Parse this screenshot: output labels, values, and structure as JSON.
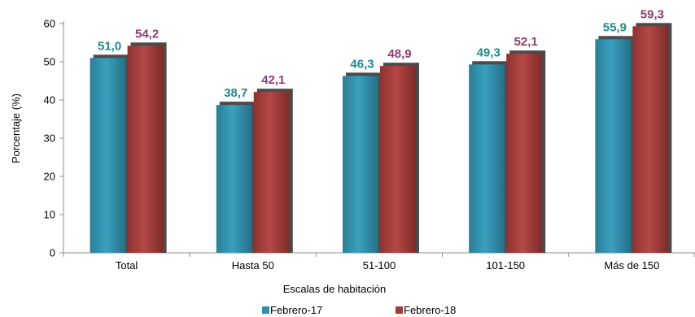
{
  "chart_data": {
    "type": "bar",
    "title": "",
    "xlabel": "Escalas de habitación",
    "ylabel": "Porcentaje (%)",
    "ylim": [
      0,
      60
    ],
    "yticks": [
      "0",
      "10",
      "20",
      "30",
      "40",
      "50",
      "60"
    ],
    "grid": false,
    "legend_position": "bottom",
    "categories": [
      "Total",
      "Hasta 50",
      "51-100",
      "101-150",
      "Más de 150"
    ],
    "series": [
      {
        "name": "Febrero-17",
        "values": [
          51.0,
          38.7,
          46.3,
          49.3,
          55.9
        ],
        "labels": [
          "51,0",
          "38,7",
          "46,3",
          "49,3",
          "55,9"
        ],
        "color": "#2F8FAA",
        "label_color": "#1B8B8B"
      },
      {
        "name": "Febrero-18",
        "values": [
          54.2,
          42.1,
          48.9,
          52.1,
          59.3
        ],
        "labels": [
          "54,2",
          "42,1",
          "48,9",
          "52,1",
          "59,3"
        ],
        "color": "#A33B39",
        "label_color": "#8E3C6E"
      }
    ]
  }
}
